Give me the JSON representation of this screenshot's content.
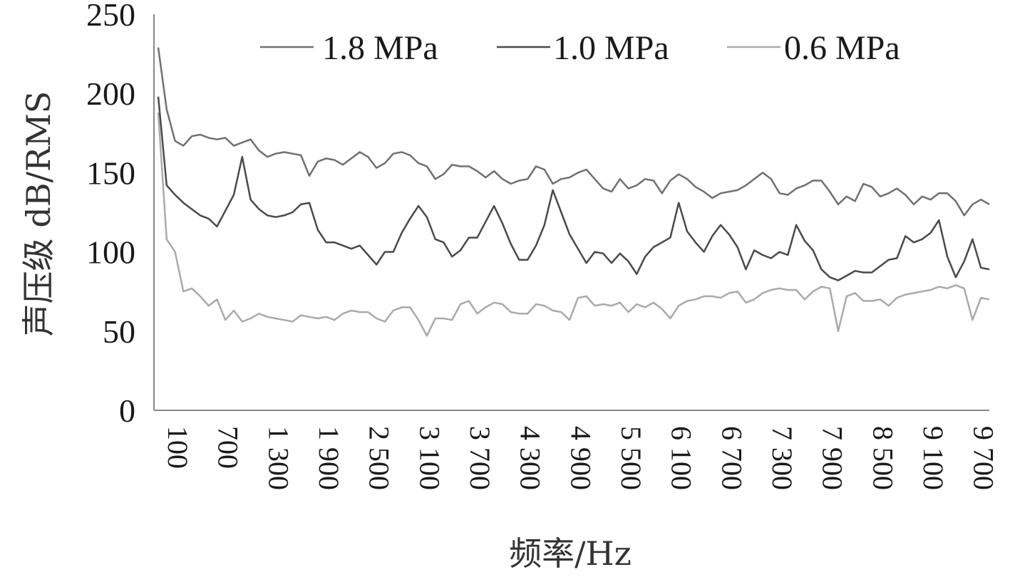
{
  "chart_data": {
    "type": "line",
    "xlabel": "频率/Hz",
    "ylabel": "声压级 dB/RMS",
    "ylim": [
      0,
      250
    ],
    "yticks": [
      "0",
      "50",
      "100",
      "150",
      "200",
      "250"
    ],
    "xtick_labels": [
      "100",
      "700",
      "1 300",
      "1 900",
      "2 500",
      "3 100",
      "3 700",
      "4 300",
      "4 900",
      "5 500",
      "6 100",
      "6 700",
      "7 300",
      "7 900",
      "8 500",
      "9 100",
      "9 700"
    ],
    "x_start": 100,
    "x_step": 100,
    "legend_position": "top",
    "series": [
      {
        "name": "1.8 MPa",
        "color": "#707070",
        "values": [
          229,
          190,
          170,
          167,
          173,
          174,
          172,
          171,
          172,
          167,
          169,
          171,
          164,
          160,
          162,
          163,
          162,
          161,
          148,
          157,
          159,
          158,
          155,
          159,
          163,
          160,
          153,
          156,
          162,
          163,
          161,
          156,
          154,
          146,
          149,
          155,
          154,
          154,
          151,
          147,
          151,
          146,
          143,
          145,
          146,
          154,
          152,
          143,
          146,
          147,
          150,
          152,
          146,
          140,
          138,
          146,
          140,
          142,
          146,
          145,
          137,
          145,
          149,
          146,
          141,
          138,
          134,
          137,
          138,
          139,
          142,
          146,
          150,
          146,
          137,
          136,
          140,
          142,
          145,
          145,
          138,
          130,
          135,
          132,
          143,
          141,
          135,
          137,
          140,
          136,
          130,
          135,
          133,
          137,
          137,
          132,
          123,
          130,
          133,
          130
        ]
      },
      {
        "name": "1.0 MPa",
        "color": "#4a4a4a",
        "values": [
          198,
          142,
          136,
          131,
          127,
          123,
          121,
          116,
          126,
          136,
          160,
          133,
          127,
          123,
          122,
          123,
          125,
          130,
          131,
          114,
          106,
          106,
          104,
          102,
          104,
          98,
          92,
          100,
          100,
          112,
          121,
          129,
          122,
          108,
          106,
          97,
          101,
          109,
          109,
          119,
          129,
          118,
          105,
          95,
          95,
          104,
          117,
          139,
          125,
          111,
          102,
          93,
          100,
          99,
          93,
          99,
          94,
          86,
          97,
          103,
          106,
          109,
          131,
          113,
          106,
          100,
          110,
          117,
          111,
          103,
          89,
          101,
          98,
          96,
          100,
          98,
          117,
          107,
          101,
          89,
          84,
          82,
          85,
          88,
          87,
          87,
          91,
          95,
          96,
          110,
          106,
          108,
          112,
          120,
          97,
          84,
          94,
          108,
          90,
          89
        ]
      },
      {
        "name": "0.6 MPa",
        "color": "#aaaaaa",
        "values": [
          188,
          108,
          100,
          75,
          77,
          72,
          66,
          70,
          57,
          63,
          56,
          58,
          61,
          59,
          58,
          57,
          56,
          60,
          59,
          58,
          59,
          57,
          61,
          63,
          62,
          62,
          58,
          56,
          63,
          65,
          65,
          57,
          47,
          58,
          58,
          57,
          67,
          69,
          61,
          65,
          68,
          67,
          62,
          61,
          61,
          67,
          66,
          63,
          62,
          57,
          71,
          72,
          66,
          67,
          66,
          68,
          62,
          67,
          65,
          68,
          64,
          58,
          66,
          69,
          70,
          72,
          72,
          71,
          74,
          75,
          68,
          70,
          74,
          76,
          77,
          76,
          76,
          70,
          75,
          78,
          77,
          50,
          72,
          74,
          69,
          69,
          70,
          66,
          71,
          73,
          74,
          75,
          76,
          78,
          77,
          79,
          77,
          57,
          71,
          70
        ]
      }
    ]
  }
}
